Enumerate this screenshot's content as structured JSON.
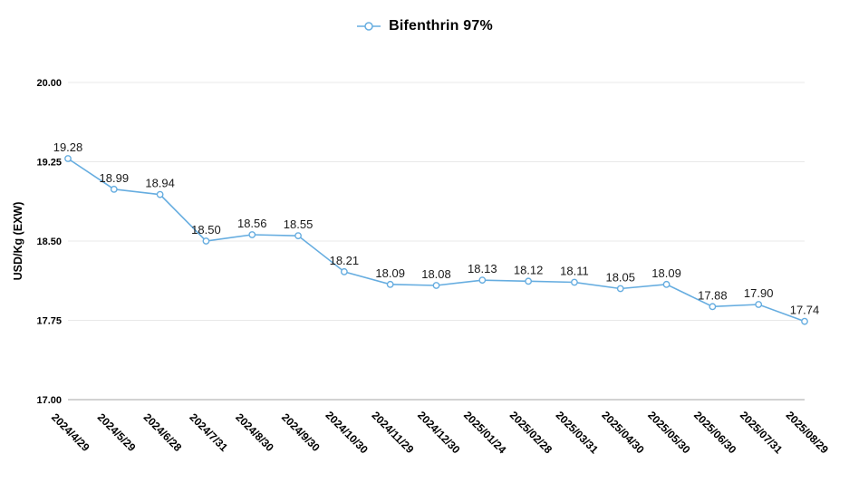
{
  "page": {
    "background": "#ffffff"
  },
  "chart_data": {
    "type": "line",
    "title": "",
    "xlabel": "",
    "ylabel": "USD/Kg (EXW)",
    "legend_position": "top-center",
    "grid": true,
    "data_labels": true,
    "categories": [
      "2024/4/29",
      "2024/5/29",
      "2024/6/28",
      "2024/7/31",
      "2024/8/30",
      "2024/9/30",
      "2024/10/30",
      "2024/11/29",
      "2024/12/30",
      "2025/01/24",
      "2025/02/28",
      "2025/03/31",
      "2025/04/30",
      "2025/05/30",
      "2025/06/30",
      "2025/07/31",
      "2025/08/29"
    ],
    "series": [
      {
        "name": "Bifenthrin 97%",
        "marker": "open-circle",
        "color": "#66ade0",
        "values": [
          19.28,
          18.99,
          18.94,
          18.5,
          18.56,
          18.55,
          18.21,
          18.09,
          18.08,
          18.13,
          18.12,
          18.11,
          18.05,
          18.09,
          17.88,
          17.9,
          17.74
        ]
      }
    ],
    "ylim": [
      17.0,
      20.0
    ],
    "yticks": [
      "20.00",
      "19.25",
      "18.50",
      "17.75",
      "17.00"
    ],
    "colors": {
      "line": "#66ade0",
      "grid": "#e8e8e8",
      "axis": "#a6a6a6",
      "tick_text": "#000000",
      "label_text": "#1a1a1a"
    }
  }
}
